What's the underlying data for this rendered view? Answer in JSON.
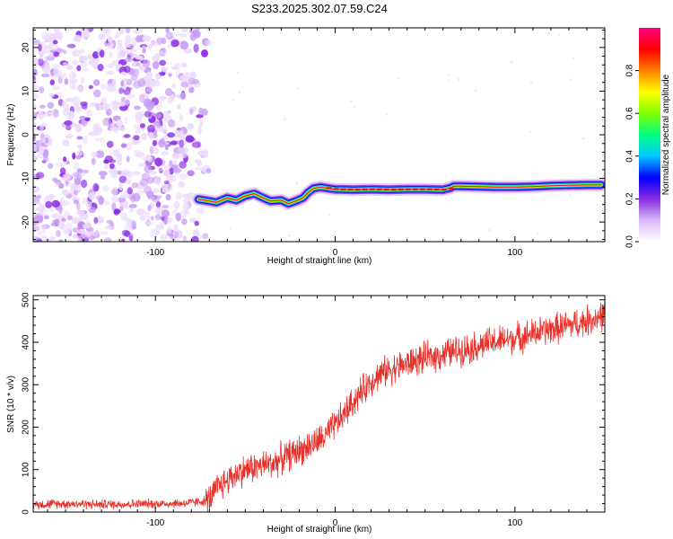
{
  "chart_data": [
    {
      "type": "heatmap",
      "title": "S233.2025.302.07.59.C24",
      "xlabel": "Height of straight line (km)",
      "ylabel": "Frequency (Hz)",
      "xlim": [
        -168,
        150
      ],
      "ylim": [
        -24.5,
        24.5
      ],
      "x_ticks": [
        -100,
        0,
        100
      ],
      "x_tick_labels": [
        "-100",
        "0",
        "100"
      ],
      "y_ticks": [
        -20,
        -10,
        0,
        10,
        20
      ],
      "y_tick_labels": [
        "-20",
        "-10",
        "0",
        "10",
        "20"
      ],
      "colorbar": {
        "label": "Normalized spectral amplitude",
        "range": [
          0,
          1
        ],
        "ticks": [
          0,
          0.2,
          0.4,
          0.6,
          0.8
        ],
        "tick_labels": [
          "0.0",
          "0.2",
          "0.4",
          "0.6",
          "0.8"
        ],
        "colors": [
          "#ffffff",
          "#d8b8f8",
          "#8a2be2",
          "#0000ff",
          "#00c8ff",
          "#00ff80",
          "#80ff00",
          "#ffff00",
          "#ff8000",
          "#ff0000",
          "#ff0080"
        ]
      },
      "noise_region": {
        "x_range": [
          -168,
          -70
        ],
        "y_range": [
          -24.5,
          24.5
        ],
        "typical_amplitude": 0.05
      },
      "ridge": {
        "x": [
          -76,
          -70,
          -66,
          -60,
          -55,
          -50,
          -45,
          -40,
          -36,
          -30,
          -26,
          -22,
          -18,
          -15,
          -12,
          -8,
          -4,
          0,
          10,
          20,
          30,
          40,
          50,
          60,
          64,
          66,
          70,
          80,
          90,
          100,
          110,
          120,
          130,
          140,
          148
        ],
        "y": [
          -14.8,
          -15.2,
          -15.5,
          -14.5,
          -15.0,
          -14.0,
          -13.5,
          -14.5,
          -15.2,
          -15.0,
          -15.8,
          -15.2,
          -14.5,
          -13.2,
          -12.3,
          -12.0,
          -12.3,
          -12.5,
          -12.6,
          -12.5,
          -12.6,
          -12.5,
          -12.5,
          -12.6,
          -12.2,
          -11.8,
          -11.8,
          -11.9,
          -12.0,
          -12.0,
          -11.9,
          -11.7,
          -11.6,
          -11.5,
          -11.5
        ],
        "peak_amplitude": 0.95
      }
    },
    {
      "type": "line",
      "xlabel": "Height of straight line (km)",
      "ylabel": "SNR (10 * v/v)",
      "xlim": [
        -168,
        150
      ],
      "ylim": [
        0,
        510
      ],
      "x_ticks": [
        -100,
        0,
        100
      ],
      "x_tick_labels": [
        "-100",
        "0",
        "100"
      ],
      "y_ticks": [
        0,
        100,
        200,
        300,
        400,
        500
      ],
      "y_tick_labels": [
        "0",
        "100",
        "200",
        "300",
        "400",
        "500"
      ],
      "color": "#e8302a",
      "series": [
        {
          "name": "SNR",
          "x": [
            -168,
            -150,
            -130,
            -110,
            -90,
            -80,
            -70,
            -65,
            -60,
            -55,
            -50,
            -45,
            -40,
            -35,
            -30,
            -25,
            -20,
            -15,
            -10,
            -5,
            0,
            5,
            10,
            15,
            20,
            25,
            30,
            40,
            50,
            60,
            70,
            80,
            90,
            100,
            110,
            120,
            130,
            140,
            150
          ],
          "values": [
            18,
            20,
            18,
            19,
            20,
            22,
            28,
            60,
            75,
            90,
            100,
            105,
            110,
            115,
            125,
            135,
            145,
            155,
            165,
            180,
            205,
            230,
            260,
            285,
            310,
            325,
            335,
            350,
            362,
            372,
            382,
            392,
            402,
            410,
            420,
            430,
            440,
            450,
            465
          ],
          "noise_amplitude": 45
        }
      ]
    }
  ]
}
